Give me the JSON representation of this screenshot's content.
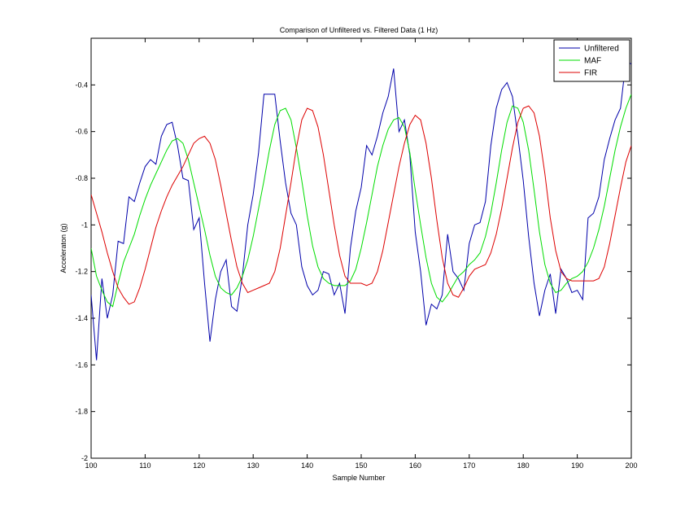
{
  "chart_data": {
    "type": "line",
    "title": "Comparison of Unfiltered vs. Filtered Data (1 Hz)",
    "xlabel": "Sample Number",
    "ylabel": "Acceleraton (g)",
    "xlim": [
      100,
      200
    ],
    "ylim": [
      -2,
      -0.2
    ],
    "xticks": [
      100,
      110,
      120,
      130,
      140,
      150,
      160,
      170,
      180,
      190,
      200
    ],
    "xtick_labels": [
      "100",
      "110",
      "120",
      "130",
      "140",
      "150",
      "160",
      "170",
      "180",
      "190",
      "200"
    ],
    "yticks": [
      -2,
      -1.8,
      -1.6,
      -1.4,
      -1.2,
      -1,
      -0.8,
      -0.6,
      -0.4
    ],
    "ytick_labels": [
      "-2",
      "-1.8",
      "-1.6",
      "-1.4",
      "-1.2",
      "-1",
      "-0.8",
      "-0.6",
      "-0.4"
    ],
    "grid": false,
    "legend_position": "top-right",
    "x": [
      100,
      101,
      102,
      103,
      104,
      105,
      106,
      107,
      108,
      109,
      110,
      111,
      112,
      113,
      114,
      115,
      116,
      117,
      118,
      119,
      120,
      121,
      122,
      123,
      124,
      125,
      126,
      127,
      128,
      129,
      130,
      131,
      132,
      133,
      134,
      135,
      136,
      137,
      138,
      139,
      140,
      141,
      142,
      143,
      144,
      145,
      146,
      147,
      148,
      149,
      150,
      151,
      152,
      153,
      154,
      155,
      156,
      157,
      158,
      159,
      160,
      161,
      162,
      163,
      164,
      165,
      166,
      167,
      168,
      169,
      170,
      171,
      172,
      173,
      174,
      175,
      176,
      177,
      178,
      179,
      180,
      181,
      182,
      183,
      184,
      185,
      186,
      187,
      188,
      189,
      190,
      191,
      192,
      193,
      194,
      195,
      196,
      197,
      198,
      199,
      200
    ],
    "series": [
      {
        "name": "Unfiltered",
        "color": "#0000aa",
        "values": [
          -1.3,
          -1.58,
          -1.23,
          -1.4,
          -1.3,
          -1.07,
          -1.08,
          -0.88,
          -0.9,
          -0.82,
          -0.75,
          -0.72,
          -0.74,
          -0.62,
          -0.57,
          -0.56,
          -0.66,
          -0.8,
          -0.81,
          -1.02,
          -0.97,
          -1.25,
          -1.5,
          -1.32,
          -1.2,
          -1.15,
          -1.35,
          -1.37,
          -1.22,
          -1.0,
          -0.87,
          -0.69,
          -0.44,
          -0.44,
          -0.44,
          -0.64,
          -0.82,
          -0.95,
          -1.0,
          -1.18,
          -1.26,
          -1.3,
          -1.28,
          -1.2,
          -1.21,
          -1.3,
          -1.25,
          -1.38,
          -1.1,
          -0.94,
          -0.84,
          -0.66,
          -0.7,
          -0.62,
          -0.52,
          -0.45,
          -0.33,
          -0.6,
          -0.55,
          -0.7,
          -1.03,
          -1.2,
          -1.43,
          -1.34,
          -1.36,
          -1.3,
          -1.04,
          -1.2,
          -1.23,
          -1.28,
          -1.08,
          -1.0,
          -0.99,
          -0.9,
          -0.66,
          -0.5,
          -0.42,
          -0.39,
          -0.45,
          -0.62,
          -0.81,
          -1.05,
          -1.25,
          -1.39,
          -1.28,
          -1.21,
          -1.38,
          -1.19,
          -1.23,
          -1.29,
          -1.28,
          -1.32,
          -0.97,
          -0.95,
          -0.88,
          -0.72,
          -0.63,
          -0.55,
          -0.5,
          -0.3,
          -0.31
        ]
      },
      {
        "name": "MAF",
        "color": "#00dd00",
        "values": [
          -1.1,
          -1.22,
          -1.28,
          -1.33,
          -1.35,
          -1.25,
          -1.16,
          -1.1,
          -1.04,
          -0.96,
          -0.89,
          -0.83,
          -0.78,
          -0.73,
          -0.68,
          -0.64,
          -0.63,
          -0.65,
          -0.72,
          -0.82,
          -0.92,
          -1.02,
          -1.13,
          -1.22,
          -1.27,
          -1.29,
          -1.3,
          -1.27,
          -1.22,
          -1.15,
          -1.05,
          -0.93,
          -0.81,
          -0.68,
          -0.57,
          -0.51,
          -0.5,
          -0.55,
          -0.67,
          -0.81,
          -0.96,
          -1.09,
          -1.18,
          -1.23,
          -1.25,
          -1.26,
          -1.26,
          -1.26,
          -1.24,
          -1.19,
          -1.1,
          -0.99,
          -0.87,
          -0.75,
          -0.66,
          -0.59,
          -0.55,
          -0.54,
          -0.58,
          -0.69,
          -0.85,
          -1.0,
          -1.14,
          -1.25,
          -1.31,
          -1.33,
          -1.3,
          -1.26,
          -1.22,
          -1.2,
          -1.17,
          -1.15,
          -1.12,
          -1.05,
          -0.95,
          -0.82,
          -0.68,
          -0.56,
          -0.49,
          -0.5,
          -0.56,
          -0.68,
          -0.85,
          -1.03,
          -1.17,
          -1.25,
          -1.29,
          -1.28,
          -1.25,
          -1.23,
          -1.22,
          -1.2,
          -1.16,
          -1.1,
          -1.02,
          -0.92,
          -0.8,
          -0.68,
          -0.58,
          -0.5,
          -0.44
        ]
      },
      {
        "name": "FIR",
        "color": "#dd0000",
        "values": [
          -0.87,
          -0.95,
          -1.03,
          -1.12,
          -1.2,
          -1.27,
          -1.31,
          -1.34,
          -1.33,
          -1.27,
          -1.19,
          -1.1,
          -1.01,
          -0.94,
          -0.88,
          -0.83,
          -0.79,
          -0.75,
          -0.7,
          -0.65,
          -0.63,
          -0.62,
          -0.65,
          -0.72,
          -0.83,
          -0.95,
          -1.07,
          -1.18,
          -1.25,
          -1.29,
          -1.28,
          -1.27,
          -1.26,
          -1.25,
          -1.2,
          -1.1,
          -0.96,
          -0.82,
          -0.67,
          -0.55,
          -0.5,
          -0.51,
          -0.58,
          -0.7,
          -0.85,
          -1.0,
          -1.13,
          -1.22,
          -1.25,
          -1.25,
          -1.25,
          -1.26,
          -1.25,
          -1.2,
          -1.11,
          -0.99,
          -0.87,
          -0.75,
          -0.65,
          -0.57,
          -0.53,
          -0.55,
          -0.65,
          -0.8,
          -0.98,
          -1.14,
          -1.25,
          -1.3,
          -1.31,
          -1.27,
          -1.22,
          -1.19,
          -1.18,
          -1.17,
          -1.12,
          -1.04,
          -0.93,
          -0.8,
          -0.67,
          -0.56,
          -0.5,
          -0.49,
          -0.52,
          -0.62,
          -0.78,
          -0.97,
          -1.11,
          -1.2,
          -1.23,
          -1.24,
          -1.24,
          -1.24,
          -1.24,
          -1.24,
          -1.23,
          -1.18,
          -1.08,
          -0.96,
          -0.84,
          -0.73,
          -0.66
        ]
      }
    ]
  }
}
